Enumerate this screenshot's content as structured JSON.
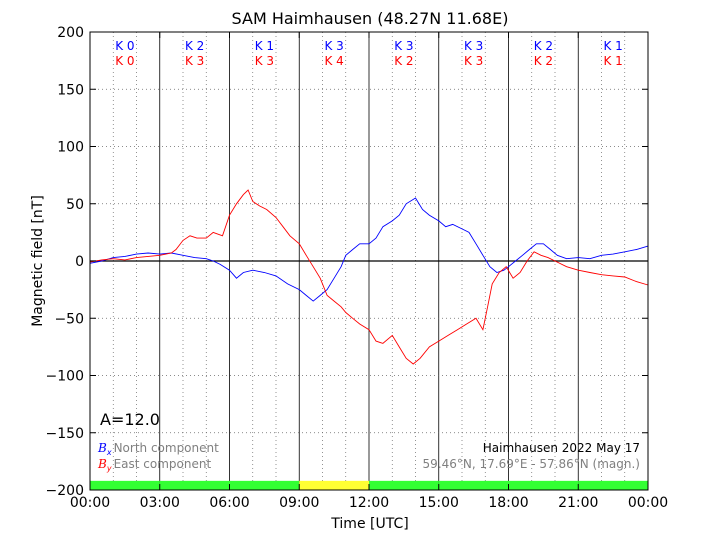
{
  "chart_data": {
    "type": "line",
    "title": "SAM Haimhausen (48.27N 11.68E)",
    "xlabel": "Time [UTC]",
    "ylabel": "Magnetic field [nT]",
    "xlim_hours": [
      0,
      24
    ],
    "ylim": [
      -200,
      200
    ],
    "x_tick_labels": [
      "00:00",
      "03:00",
      "06:00",
      "09:00",
      "12:00",
      "15:00",
      "18:00",
      "21:00",
      "00:00"
    ],
    "y_ticks": [
      -200,
      -150,
      -100,
      -50,
      0,
      50,
      100,
      150,
      200
    ],
    "grid": true,
    "activity_index": "A=12.0",
    "station_label": "Haimhausen 2022 May 17",
    "coords_label": "59.46°N, 17.69°E - 57.86°N (magn.)",
    "k_indices": {
      "bx": [
        "K 0",
        "K 2",
        "K 1",
        "K 3",
        "K 3",
        "K 3",
        "K 2",
        "K 1"
      ],
      "by": [
        "K 0",
        "K 3",
        "K 3",
        "K 4",
        "K 2",
        "K 3",
        "K 2",
        "K 1"
      ]
    },
    "activity_bar": [
      "#33ff33",
      "#33ff33",
      "#33ff33",
      "#ffff33",
      "#33ff33",
      "#33ff33",
      "#33ff33",
      "#33ff33"
    ],
    "series": [
      {
        "name": "North component",
        "symbol": "B",
        "subscript": "x",
        "color": "#0000ff",
        "points": [
          [
            0,
            -2
          ],
          [
            0.5,
            0
          ],
          [
            1,
            3
          ],
          [
            1.5,
            4
          ],
          [
            2,
            6
          ],
          [
            2.5,
            7
          ],
          [
            3,
            6
          ],
          [
            3.5,
            7
          ],
          [
            4,
            5
          ],
          [
            4.5,
            3
          ],
          [
            5,
            2
          ],
          [
            5.3,
            0
          ],
          [
            5.6,
            -3
          ],
          [
            6,
            -8
          ],
          [
            6.3,
            -15
          ],
          [
            6.6,
            -10
          ],
          [
            7,
            -8
          ],
          [
            7.5,
            -10
          ],
          [
            8,
            -13
          ],
          [
            8.5,
            -20
          ],
          [
            9,
            -25
          ],
          [
            9.3,
            -30
          ],
          [
            9.6,
            -35
          ],
          [
            9.9,
            -30
          ],
          [
            10.2,
            -25
          ],
          [
            10.5,
            -15
          ],
          [
            10.8,
            -5
          ],
          [
            11,
            5
          ],
          [
            11.3,
            10
          ],
          [
            11.6,
            15
          ],
          [
            12,
            15
          ],
          [
            12.3,
            20
          ],
          [
            12.6,
            30
          ],
          [
            13,
            35
          ],
          [
            13.3,
            40
          ],
          [
            13.6,
            50
          ],
          [
            14,
            55
          ],
          [
            14.3,
            45
          ],
          [
            14.6,
            40
          ],
          [
            15,
            35
          ],
          [
            15.3,
            30
          ],
          [
            15.6,
            32
          ],
          [
            16,
            28
          ],
          [
            16.3,
            25
          ],
          [
            16.6,
            15
          ],
          [
            16.9,
            5
          ],
          [
            17.2,
            -5
          ],
          [
            17.5,
            -10
          ],
          [
            17.8,
            -8
          ],
          [
            18,
            -5
          ],
          [
            18.3,
            0
          ],
          [
            18.6,
            5
          ],
          [
            18.9,
            10
          ],
          [
            19.2,
            15
          ],
          [
            19.5,
            15
          ],
          [
            19.8,
            10
          ],
          [
            20.1,
            5
          ],
          [
            20.5,
            2
          ],
          [
            21,
            3
          ],
          [
            21.5,
            2
          ],
          [
            22,
            5
          ],
          [
            22.5,
            6
          ],
          [
            23,
            8
          ],
          [
            23.5,
            10
          ],
          [
            24,
            13
          ]
        ]
      },
      {
        "name": "East component",
        "symbol": "B",
        "subscript": "y",
        "color": "#ff0000",
        "points": [
          [
            0,
            -1
          ],
          [
            0.5,
            1
          ],
          [
            1,
            2
          ],
          [
            1.5,
            1
          ],
          [
            2,
            3
          ],
          [
            2.5,
            4
          ],
          [
            3,
            5
          ],
          [
            3.5,
            7
          ],
          [
            3.7,
            10
          ],
          [
            4,
            18
          ],
          [
            4.3,
            22
          ],
          [
            4.6,
            20
          ],
          [
            5,
            20
          ],
          [
            5.3,
            25
          ],
          [
            5.7,
            22
          ],
          [
            6,
            40
          ],
          [
            6.3,
            50
          ],
          [
            6.6,
            58
          ],
          [
            6.8,
            62
          ],
          [
            7,
            52
          ],
          [
            7.3,
            48
          ],
          [
            7.6,
            45
          ],
          [
            8,
            38
          ],
          [
            8.3,
            30
          ],
          [
            8.6,
            22
          ],
          [
            9,
            15
          ],
          [
            9.3,
            5
          ],
          [
            9.6,
            -5
          ],
          [
            9.9,
            -15
          ],
          [
            10.2,
            -30
          ],
          [
            10.5,
            -35
          ],
          [
            10.8,
            -40
          ],
          [
            11,
            -45
          ],
          [
            11.3,
            -50
          ],
          [
            11.6,
            -55
          ],
          [
            12,
            -60
          ],
          [
            12.3,
            -70
          ],
          [
            12.6,
            -72
          ],
          [
            13,
            -65
          ],
          [
            13.3,
            -75
          ],
          [
            13.6,
            -85
          ],
          [
            13.9,
            -90
          ],
          [
            14.2,
            -85
          ],
          [
            14.6,
            -75
          ],
          [
            15,
            -70
          ],
          [
            15.4,
            -65
          ],
          [
            15.8,
            -60
          ],
          [
            16.2,
            -55
          ],
          [
            16.6,
            -50
          ],
          [
            16.9,
            -60
          ],
          [
            17.1,
            -40
          ],
          [
            17.3,
            -20
          ],
          [
            17.6,
            -10
          ],
          [
            17.9,
            -5
          ],
          [
            18.2,
            -15
          ],
          [
            18.5,
            -10
          ],
          [
            18.8,
            0
          ],
          [
            19.1,
            8
          ],
          [
            19.4,
            5
          ],
          [
            19.7,
            3
          ],
          [
            20,
            0
          ],
          [
            20.5,
            -5
          ],
          [
            21,
            -8
          ],
          [
            21.5,
            -10
          ],
          [
            22,
            -12
          ],
          [
            22.5,
            -13
          ],
          [
            23,
            -14
          ],
          [
            23.5,
            -18
          ],
          [
            24,
            -21
          ]
        ]
      }
    ]
  }
}
